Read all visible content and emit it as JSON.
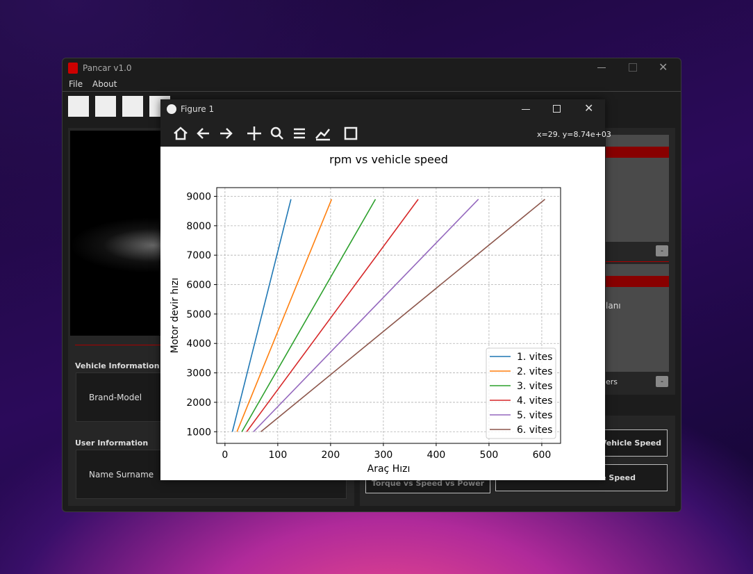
{
  "app": {
    "title": "Pancar v1.0",
    "menu": [
      "File",
      "About"
    ],
    "vehicle_info": {
      "heading": "Vehicle Information",
      "field": "Brand-Model"
    },
    "user_info": {
      "heading": "User Information",
      "field": "Name Surname"
    },
    "right_panel": {
      "fragment_top": "lanı",
      "fragment_bottom": "ers",
      "minus": [
        "-",
        "-"
      ],
      "buttons": [
        "s Vehicle Speed",
        "le Speed",
        "Torque vs Speed vs Power"
      ]
    }
  },
  "figure": {
    "title": "Figure 1",
    "coords": "x=29. y=8.74e+03"
  },
  "chart_data": {
    "type": "line",
    "title": "rpm vs vehicle speed",
    "x_label": "Araç Hızı",
    "y_label": "Motor devir hızı",
    "xlim": [
      -15.6,
      635.6
    ],
    "xticks": [
      0,
      100,
      200,
      300,
      400,
      500,
      600
    ],
    "ylim": [
      605,
      9295
    ],
    "yticks": [
      1000,
      2000,
      3000,
      4000,
      5000,
      6000,
      7000,
      8000,
      9000
    ],
    "grid": true,
    "legend": "lower right",
    "series": [
      {
        "name": "1. vites",
        "color": "#1f77b4",
        "x": [
          14,
          125
        ],
        "values": [
          1000,
          8900
        ]
      },
      {
        "name": "2. vites",
        "color": "#ff7f0e",
        "x": [
          22.7,
          202
        ],
        "values": [
          1000,
          8900
        ]
      },
      {
        "name": "3. vites",
        "color": "#2ca02c",
        "x": [
          32,
          285
        ],
        "values": [
          1000,
          8900
        ]
      },
      {
        "name": "4. vites",
        "color": "#d62728",
        "x": [
          41.1,
          366
        ],
        "values": [
          1000,
          8900
        ]
      },
      {
        "name": "5. vites",
        "color": "#9467bd",
        "x": [
          54,
          480
        ],
        "values": [
          1000,
          8900
        ]
      },
      {
        "name": "6. vites",
        "color": "#8c564b",
        "x": [
          68,
          606
        ],
        "values": [
          1000,
          8900
        ]
      }
    ]
  }
}
